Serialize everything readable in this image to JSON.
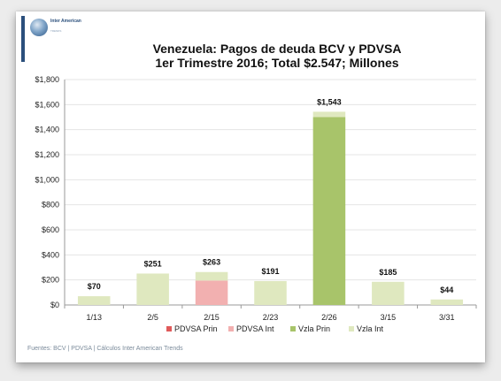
{
  "logo": {
    "text": "Inter American",
    "sub": "TRENDS"
  },
  "chart_data": {
    "type": "bar",
    "stacked": true,
    "title": "Venezuela: Pagos de deuda BCV y PDVSA",
    "subtitle": "1er Trimestre 2016; Total $2.547; Millones",
    "categories": [
      "1/13",
      "2/5",
      "2/15",
      "2/23",
      "2/26",
      "3/15",
      "3/31"
    ],
    "series": [
      {
        "name": "PDVSA Prin",
        "color": "#e05a5a",
        "values": [
          0,
          0,
          0,
          0,
          0,
          0,
          0
        ]
      },
      {
        "name": "PDVSA Int",
        "color": "#f2b0b0",
        "values": [
          0,
          0,
          195,
          0,
          0,
          0,
          0
        ]
      },
      {
        "name": "Vzla Prin",
        "color": "#a8c46a",
        "values": [
          0,
          0,
          0,
          0,
          1500,
          0,
          0
        ]
      },
      {
        "name": "Vzla Int",
        "color": "#dfe8bf",
        "values": [
          70,
          251,
          68,
          191,
          43,
          185,
          44
        ]
      }
    ],
    "totals": [
      "$70",
      "$251",
      "$263",
      "$191",
      "$1,543",
      "$185",
      "$44"
    ],
    "total_values": [
      70,
      251,
      263,
      191,
      1543,
      185,
      44
    ],
    "ylim": [
      0,
      1800
    ],
    "yticks": [
      0,
      200,
      400,
      600,
      800,
      1000,
      1200,
      1400,
      1600,
      1800
    ],
    "ytick_labels": [
      "$0",
      "$200",
      "$400",
      "$600",
      "$800",
      "$1,000",
      "$1,200",
      "$1,400",
      "$1,600",
      "$1,800"
    ],
    "grid": true,
    "legend": "bottom"
  },
  "source": "Fuentes: BCV | PDVSA | Cálculos Inter American Trends"
}
